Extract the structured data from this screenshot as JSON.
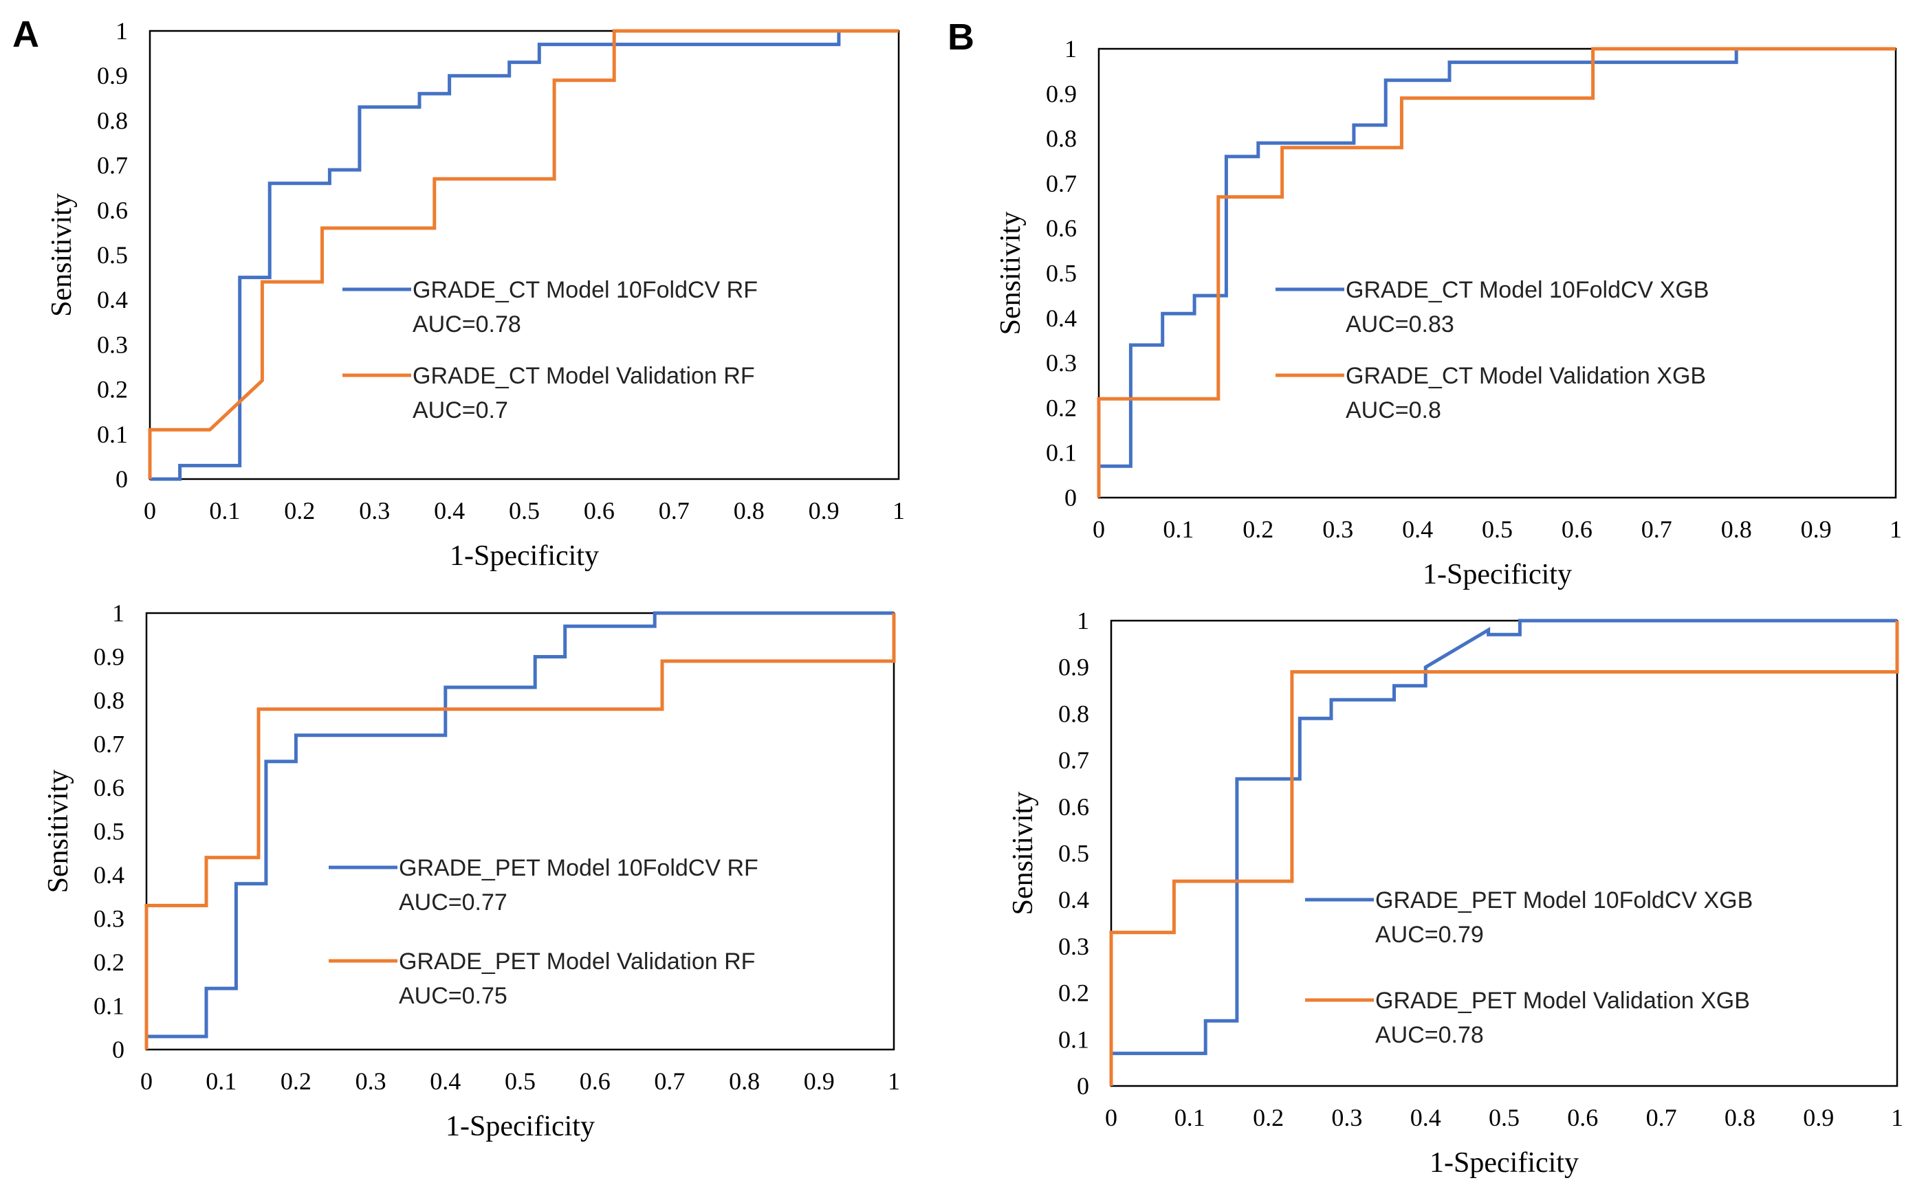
{
  "panel_labels": [
    "A",
    "B"
  ],
  "colors": {
    "blue": "#4472C4",
    "orange": "#ED7D31"
  },
  "chart_data": [
    {
      "id": "a-top",
      "panel": "A",
      "type": "line",
      "title": "",
      "xlabel": "1-Specificity",
      "ylabel": "Sensitivity",
      "xlim": [
        0,
        1
      ],
      "ylim": [
        0,
        1
      ],
      "xticks": [
        "0",
        "0.1",
        "0.2",
        "0.3",
        "0.4",
        "0.5",
        "0.6",
        "0.7",
        "0.8",
        "0.9",
        "1"
      ],
      "yticks": [
        "0",
        "0.1",
        "0.2",
        "0.3",
        "0.4",
        "0.5",
        "0.6",
        "0.7",
        "0.8",
        "0.9",
        "1"
      ],
      "series": [
        {
          "name": "GRADE_CT Model 10FoldCV RF",
          "auc": "AUC=0.78",
          "color": "#4472C4",
          "x": [
            0,
            0.04,
            0.04,
            0.12,
            0.12,
            0.16,
            0.16,
            0.24,
            0.24,
            0.28,
            0.28,
            0.36,
            0.36,
            0.4,
            0.4,
            0.48,
            0.48,
            0.52,
            0.52,
            0.92,
            0.92
          ],
          "y": [
            0,
            0,
            0.03,
            0.03,
            0.45,
            0.45,
            0.66,
            0.66,
            0.69,
            0.69,
            0.83,
            0.83,
            0.86,
            0.86,
            0.9,
            0.9,
            0.93,
            0.93,
            0.97,
            0.97,
            1.0
          ]
        },
        {
          "name": "GRADE_CT Model Validation RF",
          "auc": "AUC=0.7",
          "color": "#ED7D31",
          "x": [
            0,
            0,
            0.08,
            0.15,
            0.15,
            0.23,
            0.23,
            0.38,
            0.38,
            0.54,
            0.54,
            0.62,
            0.62,
            1.0
          ],
          "y": [
            0,
            0.11,
            0.11,
            0.22,
            0.44,
            0.44,
            0.56,
            0.56,
            0.67,
            0.67,
            0.89,
            0.89,
            1.0,
            1.0
          ]
        }
      ]
    },
    {
      "id": "a-bottom",
      "panel": "A",
      "type": "line",
      "title": "",
      "xlabel": "1-Specificity",
      "ylabel": "Sensitivity",
      "xlim": [
        0,
        1
      ],
      "ylim": [
        0,
        1
      ],
      "xticks": [
        "0",
        "0.1",
        "0.2",
        "0.3",
        "0.4",
        "0.5",
        "0.6",
        "0.7",
        "0.8",
        "0.9",
        "1"
      ],
      "yticks": [
        "0",
        "0.1",
        "0.2",
        "0.3",
        "0.4",
        "0.5",
        "0.6",
        "0.7",
        "0.8",
        "0.9",
        "1"
      ],
      "series": [
        {
          "name": "GRADE_PET Model 10FoldCV RF",
          "auc": "AUC=0.77",
          "color": "#4472C4",
          "x": [
            0,
            0.08,
            0.08,
            0.12,
            0.12,
            0.16,
            0.16,
            0.2,
            0.2,
            0.4,
            0.4,
            0.52,
            0.52,
            0.56,
            0.56,
            0.68,
            0.68,
            1.0
          ],
          "y": [
            0.03,
            0.03,
            0.14,
            0.14,
            0.38,
            0.38,
            0.66,
            0.66,
            0.72,
            0.72,
            0.83,
            0.83,
            0.9,
            0.9,
            0.97,
            0.97,
            1.0,
            1.0
          ]
        },
        {
          "name": "GRADE_PET Model Validation RF",
          "auc": "AUC=0.75",
          "color": "#ED7D31",
          "x": [
            0,
            0,
            0.08,
            0.08,
            0.15,
            0.15,
            0.69,
            0.69,
            1.0,
            1.0
          ],
          "y": [
            0,
            0.33,
            0.33,
            0.44,
            0.44,
            0.78,
            0.78,
            0.89,
            0.89,
            1.0
          ]
        }
      ]
    },
    {
      "id": "b-top",
      "panel": "B",
      "type": "line",
      "title": "",
      "xlabel": "1-Specificity",
      "ylabel": "Sensitivity",
      "xlim": [
        0,
        1
      ],
      "ylim": [
        0,
        1
      ],
      "xticks": [
        "0",
        "0.1",
        "0.2",
        "0.3",
        "0.4",
        "0.5",
        "0.6",
        "0.7",
        "0.8",
        "0.9",
        "1"
      ],
      "yticks": [
        "0",
        "0.1",
        "0.2",
        "0.3",
        "0.4",
        "0.5",
        "0.6",
        "0.7",
        "0.8",
        "0.9",
        "1"
      ],
      "series": [
        {
          "name": "GRADE_CT Model 10FoldCV XGB",
          "auc": "AUC=0.83",
          "color": "#4472C4",
          "x": [
            0,
            0.04,
            0.04,
            0.08,
            0.08,
            0.12,
            0.12,
            0.16,
            0.16,
            0.2,
            0.2,
            0.24,
            0.24,
            0.32,
            0.32,
            0.36,
            0.36,
            0.44,
            0.44,
            0.8,
            0.8
          ],
          "y": [
            0.07,
            0.07,
            0.34,
            0.34,
            0.41,
            0.41,
            0.45,
            0.45,
            0.76,
            0.76,
            0.79,
            0.79,
            0.79,
            0.79,
            0.83,
            0.83,
            0.93,
            0.93,
            0.97,
            0.97,
            1.0
          ]
        },
        {
          "name": "GRADE_CT Model Validation  XGB",
          "auc": "AUC=0.8",
          "color": "#ED7D31",
          "x": [
            0,
            0,
            0.15,
            0.15,
            0.23,
            0.23,
            0.38,
            0.38,
            0.62,
            0.62,
            1.0
          ],
          "y": [
            0,
            0.22,
            0.22,
            0.67,
            0.67,
            0.78,
            0.78,
            0.89,
            0.89,
            1.0,
            1.0
          ]
        }
      ]
    },
    {
      "id": "b-bottom",
      "panel": "B",
      "type": "line",
      "title": "",
      "xlabel": "1-Specificity",
      "ylabel": "Sensitivity",
      "xlim": [
        0,
        1
      ],
      "ylim": [
        0,
        1
      ],
      "xticks": [
        "0",
        "0.1",
        "0.2",
        "0.3",
        "0.4",
        "0.5",
        "0.6",
        "0.7",
        "0.8",
        "0.9",
        "1"
      ],
      "yticks": [
        "0",
        "0.1",
        "0.2",
        "0.3",
        "0.4",
        "0.5",
        "0.6",
        "0.7",
        "0.8",
        "0.9",
        "1"
      ],
      "series": [
        {
          "name": "GRADE_PET Model 10FoldCV XGB",
          "auc": "AUC=0.79",
          "color": "#4472C4",
          "x": [
            0,
            0.12,
            0.12,
            0.16,
            0.16,
            0.24,
            0.24,
            0.28,
            0.28,
            0.36,
            0.36,
            0.4,
            0.4,
            0.48,
            0.48,
            0.52,
            0.52,
            1.0
          ],
          "y": [
            0.07,
            0.07,
            0.14,
            0.14,
            0.66,
            0.66,
            0.79,
            0.79,
            0.83,
            0.83,
            0.86,
            0.86,
            0.9,
            0.98,
            0.97,
            0.97,
            1.0,
            1.0
          ]
        },
        {
          "name": "GRADE_PET Model Validation  XGB",
          "auc": "AUC=0.78",
          "color": "#ED7D31",
          "x": [
            0,
            0,
            0.08,
            0.08,
            0.23,
            0.23,
            1.0,
            1.0
          ],
          "y": [
            0,
            0.33,
            0.33,
            0.44,
            0.44,
            0.89,
            0.89,
            1.0
          ]
        }
      ]
    }
  ]
}
